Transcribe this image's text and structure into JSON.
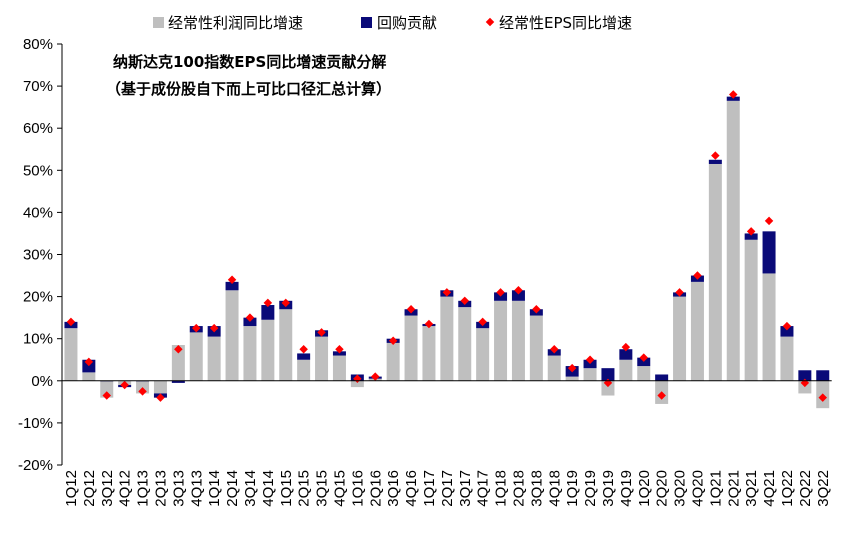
{
  "chart_data": {
    "type": "bar",
    "title": "纳斯达克100指数EPS同比增速贡献分解",
    "subtitle": "（基于成份股自下而上可比口径汇总计算）",
    "ylim": [
      -20,
      80
    ],
    "yticks": [
      "-20%",
      "-10%",
      "0%",
      "10%",
      "20%",
      "30%",
      "40%",
      "50%",
      "60%",
      "70%",
      "80%"
    ],
    "legend_position": "top",
    "categories": [
      "1Q12",
      "2Q12",
      "3Q12",
      "4Q12",
      "1Q13",
      "2Q13",
      "3Q13",
      "4Q13",
      "1Q14",
      "2Q14",
      "3Q14",
      "4Q14",
      "1Q15",
      "2Q15",
      "3Q15",
      "4Q15",
      "1Q16",
      "2Q16",
      "3Q16",
      "4Q16",
      "1Q17",
      "2Q17",
      "3Q17",
      "4Q17",
      "1Q18",
      "2Q18",
      "3Q18",
      "4Q18",
      "1Q19",
      "2Q19",
      "3Q19",
      "4Q19",
      "1Q20",
      "2Q20",
      "3Q20",
      "4Q20",
      "1Q21",
      "2Q21",
      "3Q21",
      "4Q21",
      "1Q22",
      "2Q22",
      "3Q22"
    ],
    "series": [
      {
        "name": "经常性利润同比增速",
        "kind": "bar",
        "color": "#bfbfbf",
        "values": [
          12.5,
          2,
          -4,
          -1,
          -3,
          -3,
          8.5,
          11.5,
          10.5,
          21.5,
          13,
          14.5,
          17,
          5,
          10.5,
          6,
          -1.5,
          0.5,
          9,
          15.5,
          13,
          20,
          17.5,
          12.5,
          19,
          19,
          15.5,
          6,
          1,
          3,
          -3.5,
          5,
          3.5,
          -5.5,
          20,
          23.5,
          51.5,
          66.5,
          33.5,
          25.5,
          10.5,
          -3,
          -6.5
        ]
      },
      {
        "name": "回购贡献",
        "kind": "bar",
        "color": "#0a0a78",
        "values": [
          1.5,
          3,
          0,
          -0.5,
          0,
          -1,
          -0.5,
          1.5,
          2.5,
          2,
          2,
          3.5,
          2,
          1.5,
          1.5,
          1,
          1.5,
          0.5,
          1,
          1.5,
          0.5,
          1.5,
          1.5,
          1.5,
          2,
          2.5,
          1.5,
          1.5,
          2.5,
          2,
          3,
          2.5,
          2,
          1.5,
          1,
          1.5,
          1,
          1,
          1.5,
          10,
          2.5,
          2.5,
          2.5
        ]
      },
      {
        "name": "经常性EPS同比增速",
        "kind": "marker",
        "color": "#ff0000",
        "values": [
          14,
          4.5,
          -3.5,
          -1,
          -2.5,
          -4,
          7.5,
          12.5,
          12.5,
          24,
          15,
          18.5,
          18.5,
          7.5,
          11.5,
          7.5,
          0.5,
          1,
          9.5,
          17,
          13.5,
          21,
          19,
          14,
          21,
          21.5,
          17,
          7.5,
          3,
          5,
          -0.5,
          8,
          5.5,
          -3.5,
          21,
          25,
          53.5,
          68,
          35.5,
          38,
          13,
          -0.5,
          -4
        ]
      }
    ]
  }
}
